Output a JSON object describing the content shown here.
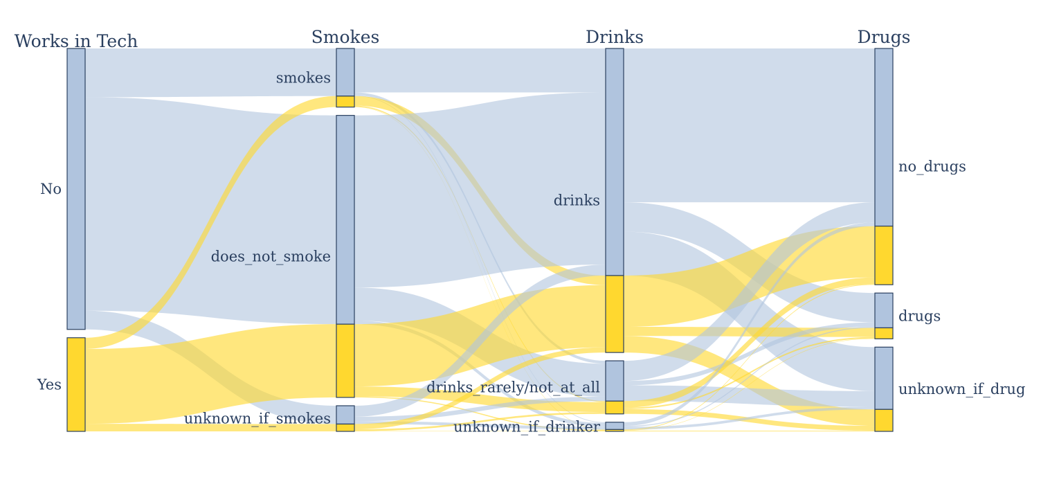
{
  "chart_data": {
    "type": "parallel_categories",
    "title": "",
    "colors": {
      "no": "#b0c4de",
      "yes": "#ffd82f",
      "line_color": "#2a3f5f"
    },
    "dimensions": [
      {
        "title": "Works in Tech",
        "categories": [
          "No",
          "Yes"
        ]
      },
      {
        "title": "Smokes",
        "categories": [
          "smokes",
          "does_not_smoke",
          "unknown_if_smokes"
        ]
      },
      {
        "title": "Drinks",
        "categories": [
          "drinks",
          "drinks_rarely/not_at_all",
          "unknown_if_drinker"
        ]
      },
      {
        "title": "Drugs",
        "categories": [
          "no_drugs",
          "drugs",
          "unknown_if_drug"
        ]
      }
    ],
    "color_groups": [
      {
        "name": "No",
        "color": "#b0c4de"
      },
      {
        "name": "Yes",
        "color": "#ffd82f"
      }
    ],
    "counts": [
      {
        "dimension": "Works in Tech",
        "category": "No",
        "No": 750,
        "Yes": 0
      },
      {
        "dimension": "Works in Tech",
        "category": "Yes",
        "No": 0,
        "Yes": 250
      },
      {
        "dimension": "Smokes",
        "category": "smokes",
        "No": 130,
        "Yes": 30
      },
      {
        "dimension": "Smokes",
        "category": "does_not_smoke",
        "No": 570,
        "Yes": 200
      },
      {
        "dimension": "Smokes",
        "category": "unknown_if_smokes",
        "No": 50,
        "Yes": 20
      },
      {
        "dimension": "Drinks",
        "category": "drinks",
        "No": 620,
        "Yes": 210
      },
      {
        "dimension": "Drinks",
        "category": "drinks_rarely/not_at_all",
        "No": 110,
        "Yes": 35
      },
      {
        "dimension": "Drinks",
        "category": "unknown_if_drinker",
        "No": 20,
        "Yes": 5
      },
      {
        "dimension": "Drugs",
        "category": "no_drugs",
        "No": 485,
        "Yes": 160
      },
      {
        "dimension": "Drugs",
        "category": "drugs",
        "No": 95,
        "Yes": 30
      },
      {
        "dimension": "Drugs",
        "category": "unknown_if_drug",
        "No": 170,
        "Yes": 60
      }
    ],
    "flows": [
      {
        "from": "No",
        "to": "smokes",
        "color": "No",
        "value": 130
      },
      {
        "from": "No",
        "to": "does_not_smoke",
        "color": "No",
        "value": 570
      },
      {
        "from": "No",
        "to": "unknown_if_smokes",
        "color": "No",
        "value": 50
      },
      {
        "from": "Yes",
        "to": "smokes",
        "color": "Yes",
        "value": 30
      },
      {
        "from": "Yes",
        "to": "does_not_smoke",
        "color": "Yes",
        "value": 200
      },
      {
        "from": "Yes",
        "to": "unknown_if_smokes",
        "color": "Yes",
        "value": 20
      },
      {
        "from": "smokes",
        "to": "drinks",
        "color": "No",
        "value": 120
      },
      {
        "from": "smokes",
        "to": "drinks_rarely/not_at_all",
        "color": "No",
        "value": 8
      },
      {
        "from": "smokes",
        "to": "unknown_if_drinker",
        "color": "No",
        "value": 2
      },
      {
        "from": "smokes",
        "to": "drinks",
        "color": "Yes",
        "value": 26
      },
      {
        "from": "smokes",
        "to": "drinks_rarely/not_at_all",
        "color": "Yes",
        "value": 3
      },
      {
        "from": "smokes",
        "to": "unknown_if_drinker",
        "color": "Yes",
        "value": 1
      },
      {
        "from": "does_not_smoke",
        "to": "drinks",
        "color": "No",
        "value": 470
      },
      {
        "from": "does_not_smoke",
        "to": "drinks_rarely/not_at_all",
        "color": "No",
        "value": 90
      },
      {
        "from": "does_not_smoke",
        "to": "unknown_if_drinker",
        "color": "No",
        "value": 10
      },
      {
        "from": "does_not_smoke",
        "to": "drinks",
        "color": "Yes",
        "value": 170
      },
      {
        "from": "does_not_smoke",
        "to": "drinks_rarely/not_at_all",
        "color": "Yes",
        "value": 27
      },
      {
        "from": "does_not_smoke",
        "to": "unknown_if_drinker",
        "color": "Yes",
        "value": 3
      },
      {
        "from": "unknown_if_smokes",
        "to": "drinks",
        "color": "No",
        "value": 30
      },
      {
        "from": "unknown_if_smokes",
        "to": "drinks_rarely/not_at_all",
        "color": "No",
        "value": 12
      },
      {
        "from": "unknown_if_smokes",
        "to": "unknown_if_drinker",
        "color": "No",
        "value": 8
      },
      {
        "from": "unknown_if_smokes",
        "to": "drinks",
        "color": "Yes",
        "value": 14
      },
      {
        "from": "unknown_if_smokes",
        "to": "drinks_rarely/not_at_all",
        "color": "Yes",
        "value": 5
      },
      {
        "from": "unknown_if_smokes",
        "to": "unknown_if_drinker",
        "color": "Yes",
        "value": 1
      },
      {
        "from": "drinks",
        "to": "no_drugs",
        "color": "No",
        "value": 420
      },
      {
        "from": "drinks",
        "to": "drugs",
        "color": "No",
        "value": 80
      },
      {
        "from": "drinks",
        "to": "unknown_if_drug",
        "color": "No",
        "value": 120
      },
      {
        "from": "drinks",
        "to": "no_drugs",
        "color": "Yes",
        "value": 140
      },
      {
        "from": "drinks",
        "to": "drugs",
        "color": "Yes",
        "value": 25
      },
      {
        "from": "drinks",
        "to": "unknown_if_drug",
        "color": "Yes",
        "value": 45
      },
      {
        "from": "drinks_rarely/not_at_all",
        "to": "no_drugs",
        "color": "No",
        "value": 55
      },
      {
        "from": "drinks_rarely/not_at_all",
        "to": "drugs",
        "color": "No",
        "value": 12
      },
      {
        "from": "drinks_rarely/not_at_all",
        "to": "unknown_if_drug",
        "color": "No",
        "value": 43
      },
      {
        "from": "drinks_rarely/not_at_all",
        "to": "no_drugs",
        "color": "Yes",
        "value": 18
      },
      {
        "from": "drinks_rarely/not_at_all",
        "to": "drugs",
        "color": "Yes",
        "value": 4
      },
      {
        "from": "drinks_rarely/not_at_all",
        "to": "unknown_if_drug",
        "color": "Yes",
        "value": 13
      },
      {
        "from": "unknown_if_drinker",
        "to": "no_drugs",
        "color": "No",
        "value": 10
      },
      {
        "from": "unknown_if_drinker",
        "to": "drugs",
        "color": "No",
        "value": 3
      },
      {
        "from": "unknown_if_drinker",
        "to": "unknown_if_drug",
        "color": "No",
        "value": 7
      },
      {
        "from": "unknown_if_drinker",
        "to": "no_drugs",
        "color": "Yes",
        "value": 2
      },
      {
        "from": "unknown_if_drinker",
        "to": "drugs",
        "color": "Yes",
        "value": 1
      },
      {
        "from": "unknown_if_drinker",
        "to": "unknown_if_drug",
        "color": "Yes",
        "value": 2
      }
    ]
  }
}
